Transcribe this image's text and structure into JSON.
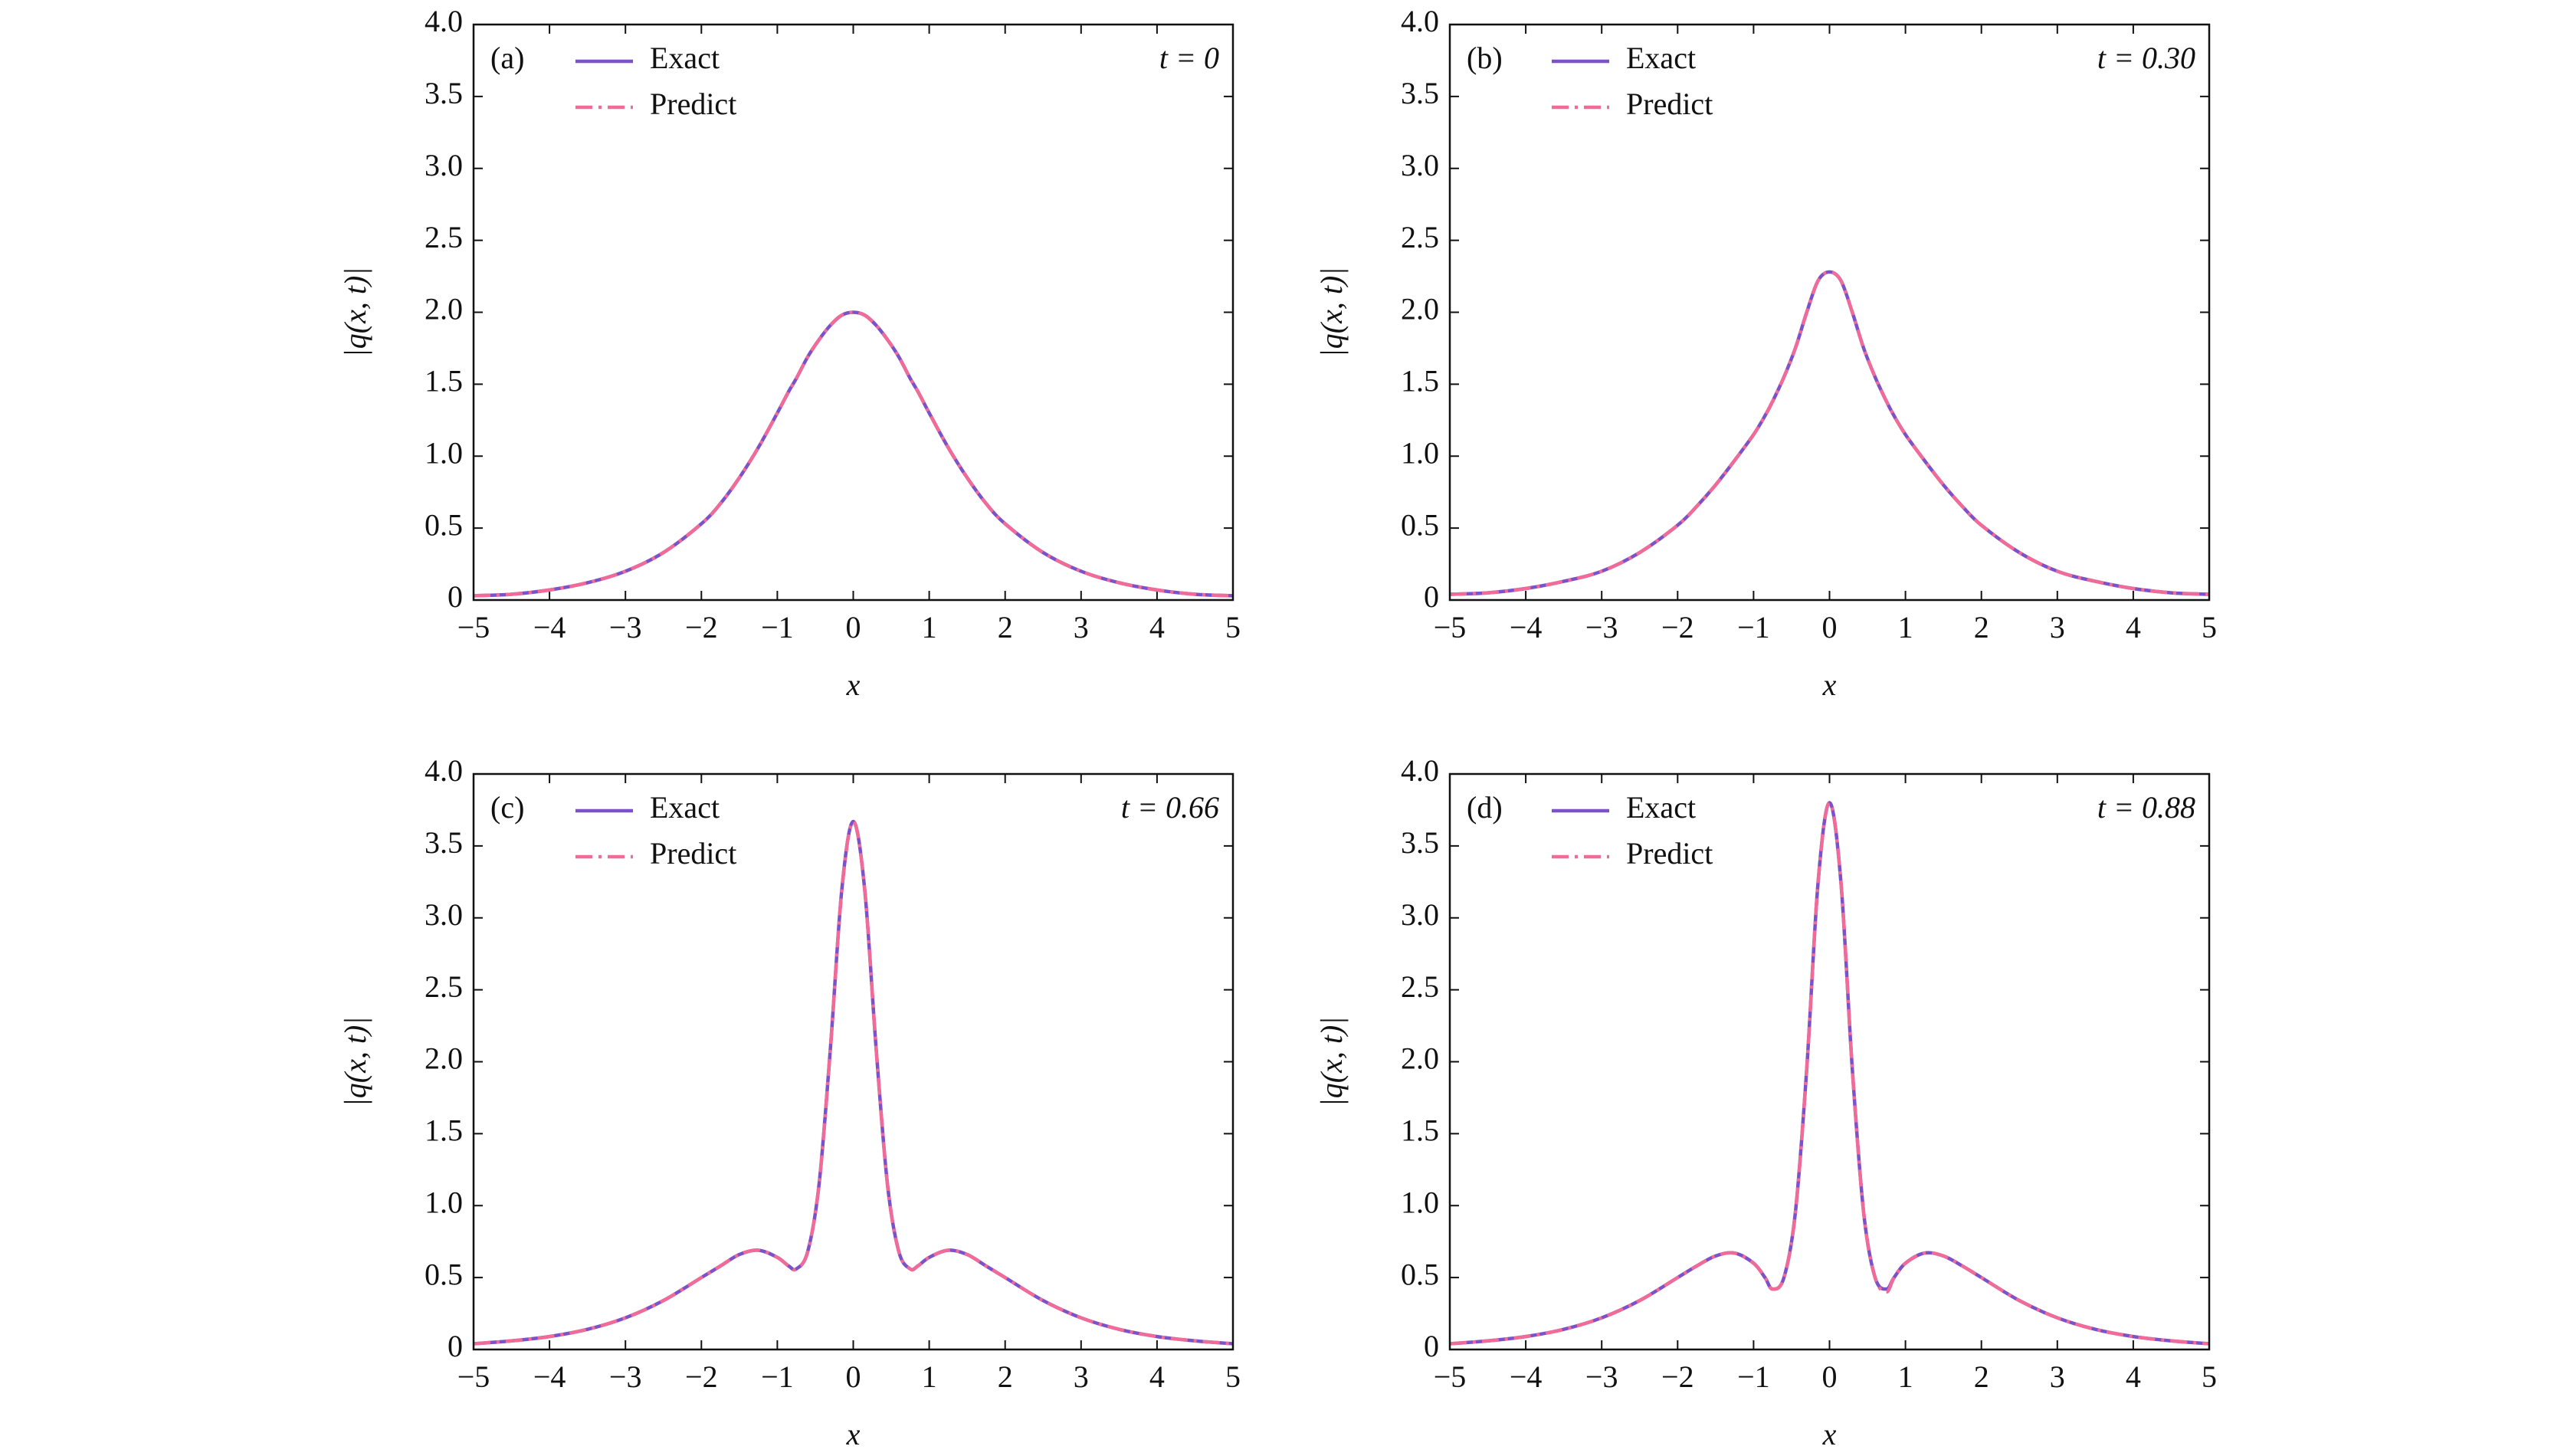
{
  "chart_data": [
    {
      "type": "line",
      "label": "(a)",
      "annotation": "t = 0",
      "xlabel": "x",
      "ylabel": "|q(x, t)|",
      "x": [
        -5,
        -4.5,
        -4,
        -3.5,
        -3,
        -2.5,
        -2,
        -1.75,
        -1.5,
        -1.25,
        -1,
        -0.85,
        -0.75,
        -0.6,
        -0.45,
        -0.3,
        -0.15,
        0,
        0.15,
        0.3,
        0.45,
        0.6,
        0.75,
        0.85,
        1,
        1.25,
        1.5,
        1.75,
        2,
        2.5,
        3,
        3.5,
        4,
        4.5,
        5
      ],
      "series": [
        {
          "name": "Exact",
          "color": "#7b52c9",
          "style": "solid",
          "values": [
            0.03,
            0.04,
            0.07,
            0.12,
            0.2,
            0.33,
            0.53,
            0.67,
            0.85,
            1.06,
            1.3,
            1.45,
            1.54,
            1.69,
            1.81,
            1.91,
            1.98,
            2.0,
            1.98,
            1.91,
            1.81,
            1.69,
            1.54,
            1.45,
            1.3,
            1.06,
            0.85,
            0.67,
            0.53,
            0.33,
            0.2,
            0.12,
            0.07,
            0.04,
            0.03
          ]
        },
        {
          "name": "Predict",
          "color": "#f06b97",
          "style": "dashdot",
          "values": [
            0.03,
            0.04,
            0.07,
            0.12,
            0.2,
            0.33,
            0.53,
            0.67,
            0.85,
            1.06,
            1.3,
            1.45,
            1.54,
            1.69,
            1.81,
            1.91,
            1.98,
            2.0,
            1.98,
            1.91,
            1.81,
            1.69,
            1.54,
            1.45,
            1.3,
            1.06,
            0.85,
            0.67,
            0.53,
            0.33,
            0.2,
            0.12,
            0.07,
            0.04,
            0.03
          ]
        }
      ],
      "xlim": [
        -5,
        5
      ],
      "ylim": [
        0,
        4
      ],
      "xticks": [
        {
          "value": -5,
          "label": "−5"
        },
        {
          "value": -4,
          "label": "−4"
        },
        {
          "value": -3,
          "label": "−3"
        },
        {
          "value": -2,
          "label": "−2"
        },
        {
          "value": -1,
          "label": "−1"
        },
        0,
        1,
        2,
        3,
        4,
        5
      ],
      "yticks": [
        0,
        0.5,
        {
          "value": 1,
          "label": "1.0"
        },
        1.5,
        {
          "value": 2,
          "label": "2.0"
        },
        2.5,
        {
          "value": 3,
          "label": "3.0"
        },
        3.5,
        {
          "value": 4,
          "label": "4.0"
        }
      ]
    },
    {
      "type": "line",
      "label": "(b)",
      "annotation": "t = 0.30",
      "xlabel": "x",
      "ylabel": "|q(x, t)|",
      "x": [
        -5,
        -4.5,
        -4,
        -3.5,
        -3,
        -2.5,
        -2,
        -1.75,
        -1.5,
        -1.25,
        -1,
        -0.85,
        -0.75,
        -0.6,
        -0.45,
        -0.3,
        -0.15,
        0,
        0.15,
        0.3,
        0.45,
        0.6,
        0.75,
        0.85,
        1,
        1.25,
        1.5,
        1.75,
        2,
        2.5,
        3,
        3.5,
        4,
        4.5,
        5
      ],
      "series": [
        {
          "name": "Exact",
          "color": "#7b52c9",
          "style": "solid",
          "values": [
            0.04,
            0.05,
            0.08,
            0.13,
            0.2,
            0.33,
            0.52,
            0.65,
            0.8,
            0.97,
            1.15,
            1.28,
            1.38,
            1.55,
            1.75,
            2.0,
            2.22,
            2.28,
            2.22,
            2.0,
            1.75,
            1.55,
            1.38,
            1.28,
            1.15,
            0.97,
            0.8,
            0.65,
            0.52,
            0.33,
            0.2,
            0.13,
            0.08,
            0.05,
            0.04
          ]
        },
        {
          "name": "Predict",
          "color": "#f06b97",
          "style": "dashdot",
          "values": [
            0.04,
            0.05,
            0.08,
            0.13,
            0.2,
            0.33,
            0.52,
            0.65,
            0.8,
            0.97,
            1.15,
            1.28,
            1.38,
            1.55,
            1.75,
            2.0,
            2.22,
            2.28,
            2.22,
            2.0,
            1.75,
            1.55,
            1.38,
            1.28,
            1.15,
            0.97,
            0.8,
            0.65,
            0.52,
            0.33,
            0.2,
            0.13,
            0.08,
            0.05,
            0.04
          ]
        }
      ],
      "xlim": [
        -5,
        5
      ],
      "ylim": [
        0,
        4
      ],
      "xticks": [
        {
          "value": -5,
          "label": "−5"
        },
        {
          "value": -4,
          "label": "−4"
        },
        {
          "value": -3,
          "label": "−3"
        },
        {
          "value": -2,
          "label": "−2"
        },
        {
          "value": -1,
          "label": "−1"
        },
        0,
        1,
        2,
        3,
        4,
        5
      ],
      "yticks": [
        0,
        0.5,
        {
          "value": 1,
          "label": "1.0"
        },
        1.5,
        {
          "value": 2,
          "label": "2.0"
        },
        2.5,
        {
          "value": 3,
          "label": "3.0"
        },
        3.5,
        {
          "value": 4,
          "label": "4.0"
        }
      ]
    },
    {
      "type": "line",
      "label": "(c)",
      "annotation": "t = 0.66",
      "xlabel": "x",
      "ylabel": "|q(x, t)|",
      "x": [
        -5,
        -4.5,
        -4,
        -3.5,
        -3,
        -2.5,
        -2,
        -1.75,
        -1.5,
        -1.25,
        -1,
        -0.85,
        -0.75,
        -0.6,
        -0.45,
        -0.3,
        -0.15,
        0,
        0.15,
        0.3,
        0.45,
        0.6,
        0.75,
        0.85,
        1,
        1.25,
        1.5,
        1.75,
        2,
        2.5,
        3,
        3.5,
        4,
        4.5,
        5
      ],
      "series": [
        {
          "name": "Exact",
          "color": "#7b52c9",
          "style": "solid",
          "values": [
            0.04,
            0.06,
            0.09,
            0.14,
            0.22,
            0.34,
            0.5,
            0.58,
            0.66,
            0.69,
            0.64,
            0.58,
            0.56,
            0.68,
            1.15,
            2.1,
            3.2,
            3.67,
            3.2,
            2.1,
            1.15,
            0.68,
            0.56,
            0.58,
            0.64,
            0.69,
            0.66,
            0.58,
            0.5,
            0.34,
            0.22,
            0.14,
            0.09,
            0.06,
            0.04
          ]
        },
        {
          "name": "Predict",
          "color": "#f06b97",
          "style": "dashdot",
          "values": [
            0.04,
            0.06,
            0.09,
            0.14,
            0.22,
            0.34,
            0.5,
            0.58,
            0.66,
            0.69,
            0.64,
            0.58,
            0.56,
            0.68,
            1.15,
            2.1,
            3.2,
            3.67,
            3.2,
            2.1,
            1.15,
            0.68,
            0.56,
            0.58,
            0.64,
            0.69,
            0.66,
            0.58,
            0.5,
            0.34,
            0.22,
            0.14,
            0.09,
            0.06,
            0.04
          ]
        }
      ],
      "xlim": [
        -5,
        5
      ],
      "ylim": [
        0,
        4
      ],
      "xticks": [
        {
          "value": -5,
          "label": "−5"
        },
        {
          "value": -4,
          "label": "−4"
        },
        {
          "value": -3,
          "label": "−3"
        },
        {
          "value": -2,
          "label": "−2"
        },
        {
          "value": -1,
          "label": "−1"
        },
        0,
        1,
        2,
        3,
        4,
        5
      ],
      "yticks": [
        0,
        0.5,
        {
          "value": 1,
          "label": "1.0"
        },
        1.5,
        {
          "value": 2,
          "label": "2.0"
        },
        2.5,
        {
          "value": 3,
          "label": "3.0"
        },
        3.5,
        {
          "value": 4,
          "label": "4.0"
        }
      ]
    },
    {
      "type": "line",
      "label": "(d)",
      "annotation": "t = 0.88",
      "xlabel": "x",
      "ylabel": "|q(x, t)|",
      "x": [
        -5,
        -4.5,
        -4,
        -3.5,
        -3,
        -2.5,
        -2,
        -1.75,
        -1.5,
        -1.25,
        -1,
        -0.85,
        -0.75,
        -0.6,
        -0.45,
        -0.3,
        -0.15,
        0,
        0.15,
        0.3,
        0.45,
        0.6,
        0.75,
        0.85,
        1,
        1.25,
        1.5,
        1.75,
        2,
        2.5,
        3,
        3.5,
        4,
        4.5,
        5
      ],
      "series": [
        {
          "name": "Exact",
          "color": "#7b52c9",
          "style": "solid",
          "values": [
            0.04,
            0.06,
            0.09,
            0.14,
            0.22,
            0.34,
            0.5,
            0.58,
            0.65,
            0.67,
            0.6,
            0.5,
            0.42,
            0.5,
            0.95,
            1.95,
            3.25,
            3.8,
            3.25,
            1.95,
            0.95,
            0.5,
            0.42,
            0.5,
            0.6,
            0.67,
            0.65,
            0.58,
            0.5,
            0.34,
            0.22,
            0.14,
            0.09,
            0.06,
            0.04
          ]
        },
        {
          "name": "Predict",
          "color": "#f06b97",
          "style": "dashdot",
          "values": [
            0.04,
            0.06,
            0.09,
            0.14,
            0.22,
            0.34,
            0.5,
            0.58,
            0.65,
            0.67,
            0.6,
            0.5,
            0.42,
            0.5,
            0.95,
            1.95,
            3.25,
            3.8,
            3.25,
            1.95,
            0.95,
            0.5,
            0.4,
            0.5,
            0.6,
            0.67,
            0.65,
            0.58,
            0.5,
            0.34,
            0.22,
            0.14,
            0.09,
            0.06,
            0.04
          ]
        }
      ],
      "xlim": [
        -5,
        5
      ],
      "ylim": [
        0,
        4
      ],
      "xticks": [
        {
          "value": -5,
          "label": "−5"
        },
        {
          "value": -4,
          "label": "−4"
        },
        {
          "value": -3,
          "label": "−3"
        },
        {
          "value": -2,
          "label": "−2"
        },
        {
          "value": -1,
          "label": "−1"
        },
        0,
        1,
        2,
        3,
        4,
        5
      ],
      "yticks": [
        0,
        0.5,
        {
          "value": 1,
          "label": "1.0"
        },
        1.5,
        {
          "value": 2,
          "label": "2.0"
        },
        2.5,
        {
          "value": 3,
          "label": "3.0"
        },
        3.5,
        {
          "value": 4,
          "label": "4.0"
        }
      ]
    }
  ]
}
